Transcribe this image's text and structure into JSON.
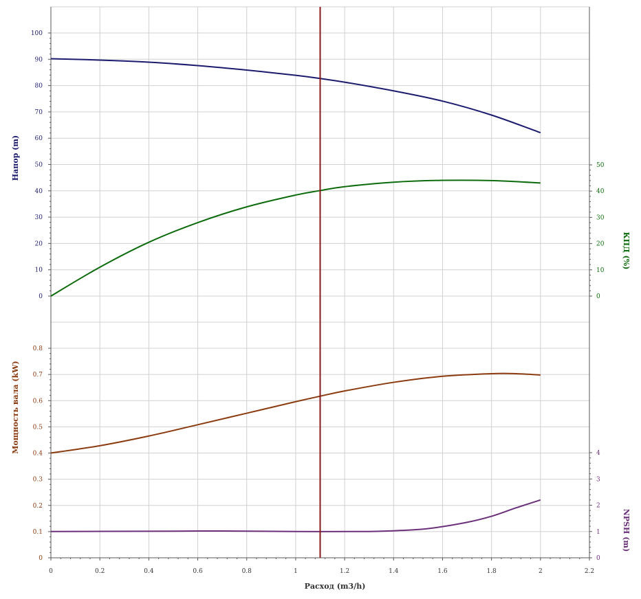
{
  "colors": {
    "head": "#1a1a6e",
    "efficiency": "#0b6b0b",
    "power": "#8b3a0e",
    "npsh": "#6b2f7a",
    "marker": "#8b1a1a",
    "grid": "#d0d0d0",
    "axis": "#555555"
  },
  "chart_data": {
    "type": "line",
    "xlabel": "Расход (m3/h)",
    "x_ticks": [
      "0",
      "0.2",
      "0.4",
      "0.6",
      "0.8",
      "1",
      "1.2",
      "1.4",
      "1.6",
      "1.8",
      "2",
      "2.2"
    ],
    "xlim": [
      0,
      2.2
    ],
    "operating_point_x": 1.1,
    "panels": [
      {
        "name": "upper",
        "left_axis": {
          "label": "Напор (m)",
          "ylim": [
            0,
            100
          ],
          "ticks": [
            "0",
            "10",
            "20",
            "30",
            "40",
            "50",
            "60",
            "70",
            "80",
            "90",
            "100"
          ]
        },
        "right_axis": {
          "label": "КПД (%)",
          "ylim": [
            0,
            50
          ],
          "ticks": [
            "0",
            "10",
            "20",
            "30",
            "40",
            "50"
          ]
        },
        "series": [
          {
            "axis": "left",
            "color_key": "head",
            "x": [
              0,
              0.2,
              0.4,
              0.6,
              0.8,
              1.0,
              1.1,
              1.2,
              1.4,
              1.6,
              1.8,
              2.0
            ],
            "y": [
              90.2,
              89.7,
              88.9,
              87.6,
              85.9,
              83.9,
              82.7,
              81.3,
              78.0,
              74.1,
              68.8,
              62.1
            ]
          },
          {
            "axis": "right",
            "color_key": "efficiency",
            "x": [
              0,
              0.2,
              0.4,
              0.6,
              0.8,
              1.0,
              1.1,
              1.2,
              1.4,
              1.6,
              1.8,
              2.0
            ],
            "y": [
              0,
              11,
              20.5,
              28,
              34,
              38.5,
              40.2,
              41.7,
              43.4,
              44.1,
              44.0,
              43.1
            ]
          }
        ]
      },
      {
        "name": "lower",
        "left_axis": {
          "label": "Мощность вала (kW)",
          "ylim": [
            0,
            0.8
          ],
          "ticks": [
            "0",
            "0.1",
            "0.2",
            "0.3",
            "0.4",
            "0.5",
            "0.6",
            "0.7",
            "0.8"
          ]
        },
        "right_axis": {
          "label": "NPSH (m)",
          "ylim": [
            0,
            4
          ],
          "ticks": [
            "0",
            "1",
            "2",
            "3",
            "4"
          ]
        },
        "series": [
          {
            "axis": "left",
            "color_key": "power",
            "x": [
              0,
              0.2,
              0.4,
              0.6,
              0.8,
              1.0,
              1.1,
              1.2,
              1.4,
              1.6,
              1.8,
              1.9,
              2.0
            ],
            "y": [
              0.4,
              0.428,
              0.465,
              0.508,
              0.552,
              0.596,
              0.617,
              0.637,
              0.67,
              0.693,
              0.703,
              0.703,
              0.698
            ]
          },
          {
            "axis": "right",
            "color_key": "npsh",
            "x": [
              0,
              0.4,
              0.7,
              1.0,
              1.3,
              1.45,
              1.55,
              1.7,
              1.8,
              1.9,
              2.0
            ],
            "y": [
              1.0,
              1.01,
              1.02,
              1.0,
              1.0,
              1.05,
              1.12,
              1.35,
              1.58,
              1.9,
              2.2
            ]
          }
        ]
      }
    ]
  }
}
